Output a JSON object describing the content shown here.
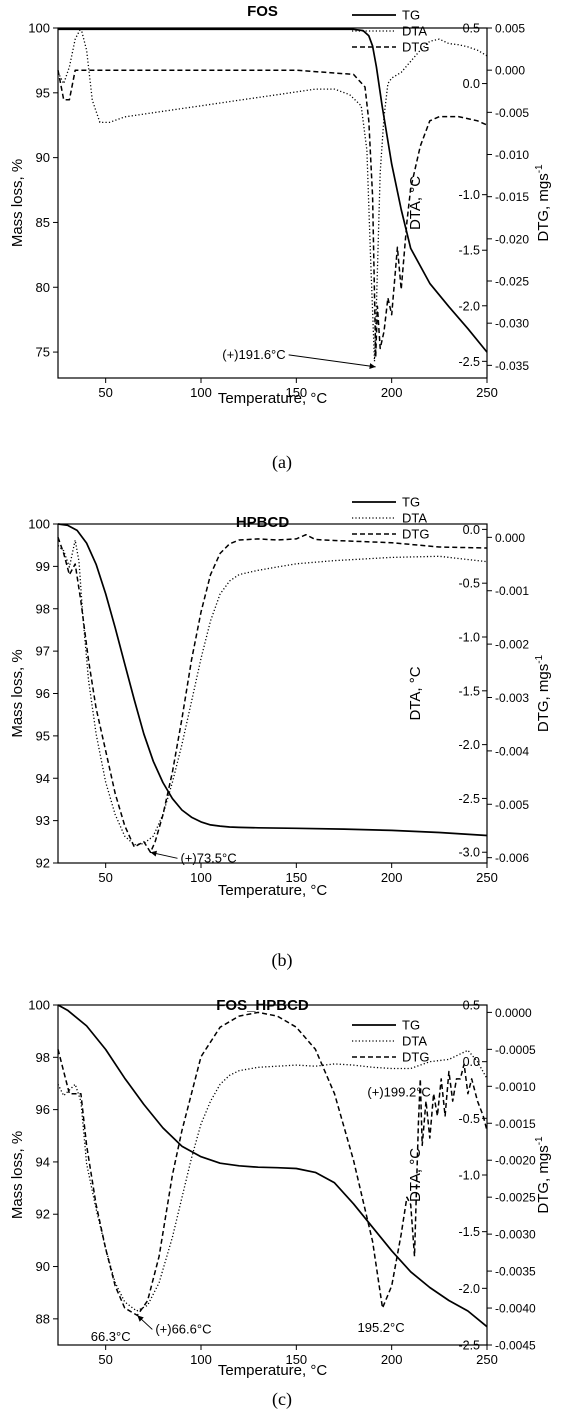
{
  "chart_data": [
    {
      "type": "line",
      "title": "FOS",
      "caption": "(a)",
      "xlabel": "Temperature, °C",
      "ylabel_left": "Mass loss, %",
      "ylabel_dta": "DTA, °C",
      "ylabel_dtg": "DTG, mgs",
      "dtg_unit_exp": "-1",
      "xlim": [
        25,
        250
      ],
      "ylim_left": [
        73,
        100
      ],
      "ylim_dta": [
        -2.65,
        0.5
      ],
      "ylim_dtg": [
        -0.0365,
        0.005
      ],
      "x_ticks": [
        50,
        100,
        150,
        200,
        250
      ],
      "left_ticks": [
        75,
        80,
        85,
        90,
        95,
        100
      ],
      "dta_ticks": [
        -2.5,
        -2.0,
        -1.5,
        -1.0,
        0.0,
        0.5
      ],
      "dta_tick_labels": [
        "-2.5",
        "-2.0",
        "-1.5",
        "-1.0",
        "0.0",
        "0.5"
      ],
      "dtg_ticks": [
        -0.035,
        -0.03,
        -0.025,
        -0.02,
        -0.015,
        -0.01,
        -0.005,
        0.0,
        0.005
      ],
      "dtg_tick_labels": [
        "-0.035",
        "-0.030",
        "-0.025",
        "-0.020",
        "-0.015",
        "-0.010",
        "-0.005",
        "0.000",
        "0.005"
      ],
      "legend": [
        "TG",
        "DTA",
        "DTG"
      ],
      "legend_position": "top-right",
      "series": [
        {
          "name": "TG",
          "axis": "left",
          "x": [
            25,
            60,
            100,
            150,
            180,
            185,
            188,
            190,
            192,
            195,
            200,
            205,
            210,
            220,
            230,
            240,
            250
          ],
          "y": [
            99.9,
            99.9,
            99.9,
            99.9,
            99.9,
            99.8,
            99.4,
            98.6,
            97.0,
            94.0,
            89.5,
            86.0,
            83.0,
            80.3,
            78.5,
            76.8,
            75.0
          ]
        },
        {
          "name": "DTA",
          "axis": "dta",
          "x": [
            25,
            28,
            31,
            34,
            37,
            40,
            43,
            47,
            52,
            60,
            80,
            100,
            120,
            140,
            160,
            170,
            178,
            184,
            187,
            189,
            191,
            192,
            194,
            196,
            198,
            200,
            205,
            210,
            215,
            220,
            225,
            230,
            235,
            240,
            245,
            250
          ],
          "y": [
            0.1,
            0.0,
            0.15,
            0.4,
            0.5,
            0.3,
            -0.15,
            -0.35,
            -0.35,
            -0.3,
            -0.25,
            -0.2,
            -0.15,
            -0.1,
            -0.05,
            -0.05,
            -0.1,
            -0.2,
            -0.6,
            -1.6,
            -2.5,
            -2.0,
            -0.8,
            -0.3,
            0.0,
            0.05,
            0.1,
            0.2,
            0.3,
            0.38,
            0.4,
            0.36,
            0.35,
            0.33,
            0.3,
            0.25
          ]
        },
        {
          "name": "DTG",
          "axis": "dtg",
          "x": [
            25,
            28,
            31,
            34,
            40,
            60,
            100,
            150,
            180,
            186,
            188,
            190,
            191.6,
            192.5,
            194,
            196,
            198,
            200,
            203,
            205,
            208,
            210,
            215,
            220,
            225,
            235,
            245,
            250
          ],
          "y": [
            0.0,
            -0.0035,
            -0.0035,
            0.0,
            0.0,
            0.0,
            0.0,
            0.0,
            -0.0005,
            -0.002,
            -0.006,
            -0.015,
            -0.034,
            -0.028,
            -0.033,
            -0.031,
            -0.027,
            -0.029,
            -0.021,
            -0.026,
            -0.018,
            -0.014,
            -0.009,
            -0.006,
            -0.0055,
            -0.0055,
            -0.006,
            -0.0065
          ]
        }
      ],
      "annotations": [
        {
          "text": "(+)191.6°C",
          "x": 191.6,
          "axis": "dta",
          "y": -2.55
        }
      ]
    },
    {
      "type": "line",
      "title": "HPBCD",
      "caption": "(b)",
      "xlabel": "Temperature, °C",
      "ylabel_left": "Mass loss, %",
      "ylabel_dta": "DTA, °C",
      "ylabel_dtg": "DTG, mgs",
      "dtg_unit_exp": "-1",
      "xlim": [
        25,
        250
      ],
      "ylim_left": [
        92,
        100
      ],
      "ylim_dta": [
        -3.1,
        0.05
      ],
      "ylim_dtg": [
        -0.0061,
        0.00025
      ],
      "x_ticks": [
        50,
        100,
        150,
        200,
        250
      ],
      "left_ticks": [
        92,
        93,
        94,
        95,
        96,
        97,
        98,
        99,
        100
      ],
      "dta_ticks": [
        -3.0,
        -2.5,
        -2.0,
        -1.5,
        -1.0,
        -0.5,
        0.0
      ],
      "dta_tick_labels": [
        "-3.0",
        "-2.5",
        "-2.0",
        "-1.5",
        "-1.0",
        "-0.5",
        "0.0"
      ],
      "dtg_ticks": [
        -0.006,
        -0.005,
        -0.004,
        -0.003,
        -0.002,
        -0.001,
        0.0
      ],
      "dtg_tick_labels": [
        "-0.006",
        "-0.005",
        "-0.004",
        "-0.003",
        "-0.002",
        "-0.001",
        "0.000"
      ],
      "legend": [
        "TG",
        "DTA",
        "DTG"
      ],
      "legend_position": "top-right",
      "series": [
        {
          "name": "TG",
          "axis": "left",
          "x": [
            25,
            30,
            35,
            40,
            45,
            50,
            55,
            60,
            65,
            70,
            75,
            80,
            85,
            90,
            95,
            100,
            105,
            110,
            115,
            120,
            130,
            150,
            175,
            200,
            225,
            250
          ],
          "y": [
            100,
            99.97,
            99.85,
            99.55,
            99.05,
            98.35,
            97.55,
            96.7,
            95.85,
            95.05,
            94.4,
            93.9,
            93.52,
            93.25,
            93.08,
            92.97,
            92.9,
            92.87,
            92.85,
            92.84,
            92.83,
            92.82,
            92.8,
            92.77,
            92.72,
            92.65
          ]
        },
        {
          "name": "DTA",
          "axis": "dta",
          "x": [
            25,
            28,
            31,
            34,
            36,
            38,
            41,
            45,
            50,
            55,
            60,
            65,
            70,
            75,
            80,
            85,
            90,
            95,
            100,
            105,
            110,
            115,
            120,
            130,
            140,
            150,
            170,
            200,
            225,
            250
          ],
          "y": [
            -0.15,
            -0.2,
            -0.35,
            -0.1,
            -0.3,
            -0.8,
            -1.4,
            -1.9,
            -2.35,
            -2.65,
            -2.85,
            -2.93,
            -2.92,
            -2.85,
            -2.65,
            -2.35,
            -2.0,
            -1.6,
            -1.2,
            -0.85,
            -0.6,
            -0.48,
            -0.42,
            -0.38,
            -0.35,
            -0.32,
            -0.29,
            -0.26,
            -0.25,
            -0.3
          ]
        },
        {
          "name": "DTG",
          "axis": "dtg",
          "x": [
            25,
            28,
            31,
            34,
            37,
            41,
            45,
            50,
            55,
            60,
            65,
            70,
            73.5,
            76,
            80,
            85,
            90,
            95,
            100,
            105,
            110,
            115,
            120,
            130,
            140,
            150,
            155,
            160,
            170,
            200,
            225,
            250
          ],
          "y": [
            0.0,
            -0.0003,
            -0.0007,
            -0.0005,
            -0.0012,
            -0.0023,
            -0.0032,
            -0.004,
            -0.0048,
            -0.0054,
            -0.0058,
            -0.0057,
            -0.0059,
            -0.0057,
            -0.0052,
            -0.0044,
            -0.0034,
            -0.0023,
            -0.0014,
            -0.0007,
            -0.0003,
            -0.00012,
            -5e-05,
            -3e-05,
            -5e-05,
            -3e-05,
            5e-05,
            -4e-05,
            -6e-05,
            -0.0001,
            -0.00018,
            -0.0002
          ]
        }
      ],
      "annotations": [
        {
          "text": "(+)73.5°C",
          "x": 73.5,
          "axis": "dtg",
          "y": -0.0059
        }
      ]
    },
    {
      "type": "line",
      "title": "FOS_HPBCD",
      "caption": "(c)",
      "xlabel": "Temperature, °C",
      "ylabel_left": "Mass loss, %",
      "ylabel_dta": "DTA, °C",
      "ylabel_dtg": "DTG, mgs",
      "dtg_unit_exp": "-1",
      "xlim": [
        25,
        250
      ],
      "ylim_left": [
        87,
        100
      ],
      "ylim_dta": [
        -2.5,
        0.5
      ],
      "ylim_dtg": [
        -0.0045,
        0.0001
      ],
      "x_ticks": [
        50,
        100,
        150,
        200,
        250
      ],
      "left_ticks": [
        88,
        90,
        92,
        94,
        96,
        98,
        100
      ],
      "dta_ticks": [
        -2.5,
        -2.0,
        -1.5,
        -1.0,
        -0.5,
        0.0,
        0.5
      ],
      "dta_tick_labels": [
        "-2.5",
        "-2.0",
        "-1.5",
        "-1.0",
        "-0.5",
        "0.0",
        "0.5"
      ],
      "dtg_ticks": [
        -0.0045,
        -0.004,
        -0.0035,
        -0.003,
        -0.0025,
        -0.002,
        -0.0015,
        -0.001,
        -0.0005,
        0.0
      ],
      "dtg_tick_labels": [
        "-0.0045",
        "-0.0040",
        "-0.0035",
        "-0.0030",
        "-0.0025",
        "-0.0020",
        "-0.0015",
        "-0.0010",
        "-0.0005",
        "0.0000"
      ],
      "legend": [
        "TG",
        "DTA",
        "DTG"
      ],
      "legend_position": "top-right",
      "series": [
        {
          "name": "TG",
          "axis": "left",
          "x": [
            25,
            30,
            40,
            50,
            60,
            70,
            80,
            90,
            100,
            110,
            120,
            130,
            140,
            150,
            160,
            170,
            180,
            190,
            200,
            210,
            220,
            230,
            240,
            250
          ],
          "y": [
            100,
            99.8,
            99.2,
            98.3,
            97.2,
            96.2,
            95.3,
            94.6,
            94.2,
            93.95,
            93.85,
            93.8,
            93.78,
            93.75,
            93.6,
            93.2,
            92.4,
            91.5,
            90.6,
            89.8,
            89.2,
            88.7,
            88.3,
            87.7
          ]
        },
        {
          "name": "DTA",
          "axis": "dta",
          "x": [
            25,
            28,
            31,
            34,
            37,
            40,
            45,
            50,
            55,
            60,
            66.3,
            72,
            78,
            85,
            90,
            95,
            100,
            105,
            110,
            115,
            120,
            130,
            140,
            150,
            160,
            170,
            180,
            190,
            200,
            210,
            220,
            230,
            240,
            245,
            250
          ],
          "y": [
            -0.2,
            -0.3,
            -0.25,
            -0.2,
            -0.35,
            -0.9,
            -1.3,
            -1.65,
            -1.95,
            -2.12,
            -2.2,
            -2.15,
            -1.95,
            -1.55,
            -1.2,
            -0.85,
            -0.55,
            -0.35,
            -0.2,
            -0.12,
            -0.08,
            -0.05,
            -0.04,
            -0.03,
            -0.04,
            -0.02,
            -0.03,
            -0.05,
            -0.06,
            -0.06,
            0.0,
            0.02,
            0.1,
            0.0,
            -0.15
          ]
        },
        {
          "name": "DTG",
          "axis": "dtg",
          "x": [
            25,
            28,
            31,
            34,
            37,
            40,
            45,
            50,
            55,
            60,
            66.6,
            72,
            78,
            85,
            90,
            100,
            110,
            120,
            130,
            140,
            150,
            160,
            170,
            180,
            190,
            195.2,
            200,
            205,
            208,
            210,
            212,
            214,
            215,
            216,
            218,
            220,
            222,
            224,
            226,
            228,
            230,
            232,
            234,
            236,
            238,
            240,
            242,
            245,
            248,
            250
          ],
          "y": [
            -0.0005,
            -0.0008,
            -0.0011,
            -0.0011,
            -0.0011,
            -0.0018,
            -0.0026,
            -0.0032,
            -0.0037,
            -0.004,
            -0.0041,
            -0.0039,
            -0.0033,
            -0.0022,
            -0.0016,
            -0.0006,
            -0.0002,
            -5e-05,
            0.0,
            -5e-05,
            -0.0002,
            -0.0005,
            -0.0011,
            -0.002,
            -0.0031,
            -0.004,
            -0.0037,
            -0.003,
            -0.0025,
            -0.0026,
            -0.0033,
            -0.0015,
            -0.0009,
            -0.0018,
            -0.0012,
            -0.0017,
            -0.0011,
            -0.0014,
            -0.0009,
            -0.0014,
            -0.0008,
            -0.0012,
            -0.0009,
            -0.0009,
            -0.0007,
            -0.0011,
            -0.0009,
            -0.0012,
            -0.0014,
            -0.0016
          ]
        }
      ],
      "annotations": [
        {
          "text": "66.3°C",
          "x": 66.3,
          "axis": "dta",
          "y": -2.2
        },
        {
          "text": "(+)66.6°C",
          "x": 66.6,
          "axis": "dtg",
          "y": -0.0041
        },
        {
          "text": "195.2°C",
          "x": 195.2,
          "axis": "dtg",
          "y": -0.004
        },
        {
          "text": "(+)199.2°C",
          "x": 213.5,
          "axis": "dtg",
          "y": -0.0013
        }
      ]
    }
  ]
}
